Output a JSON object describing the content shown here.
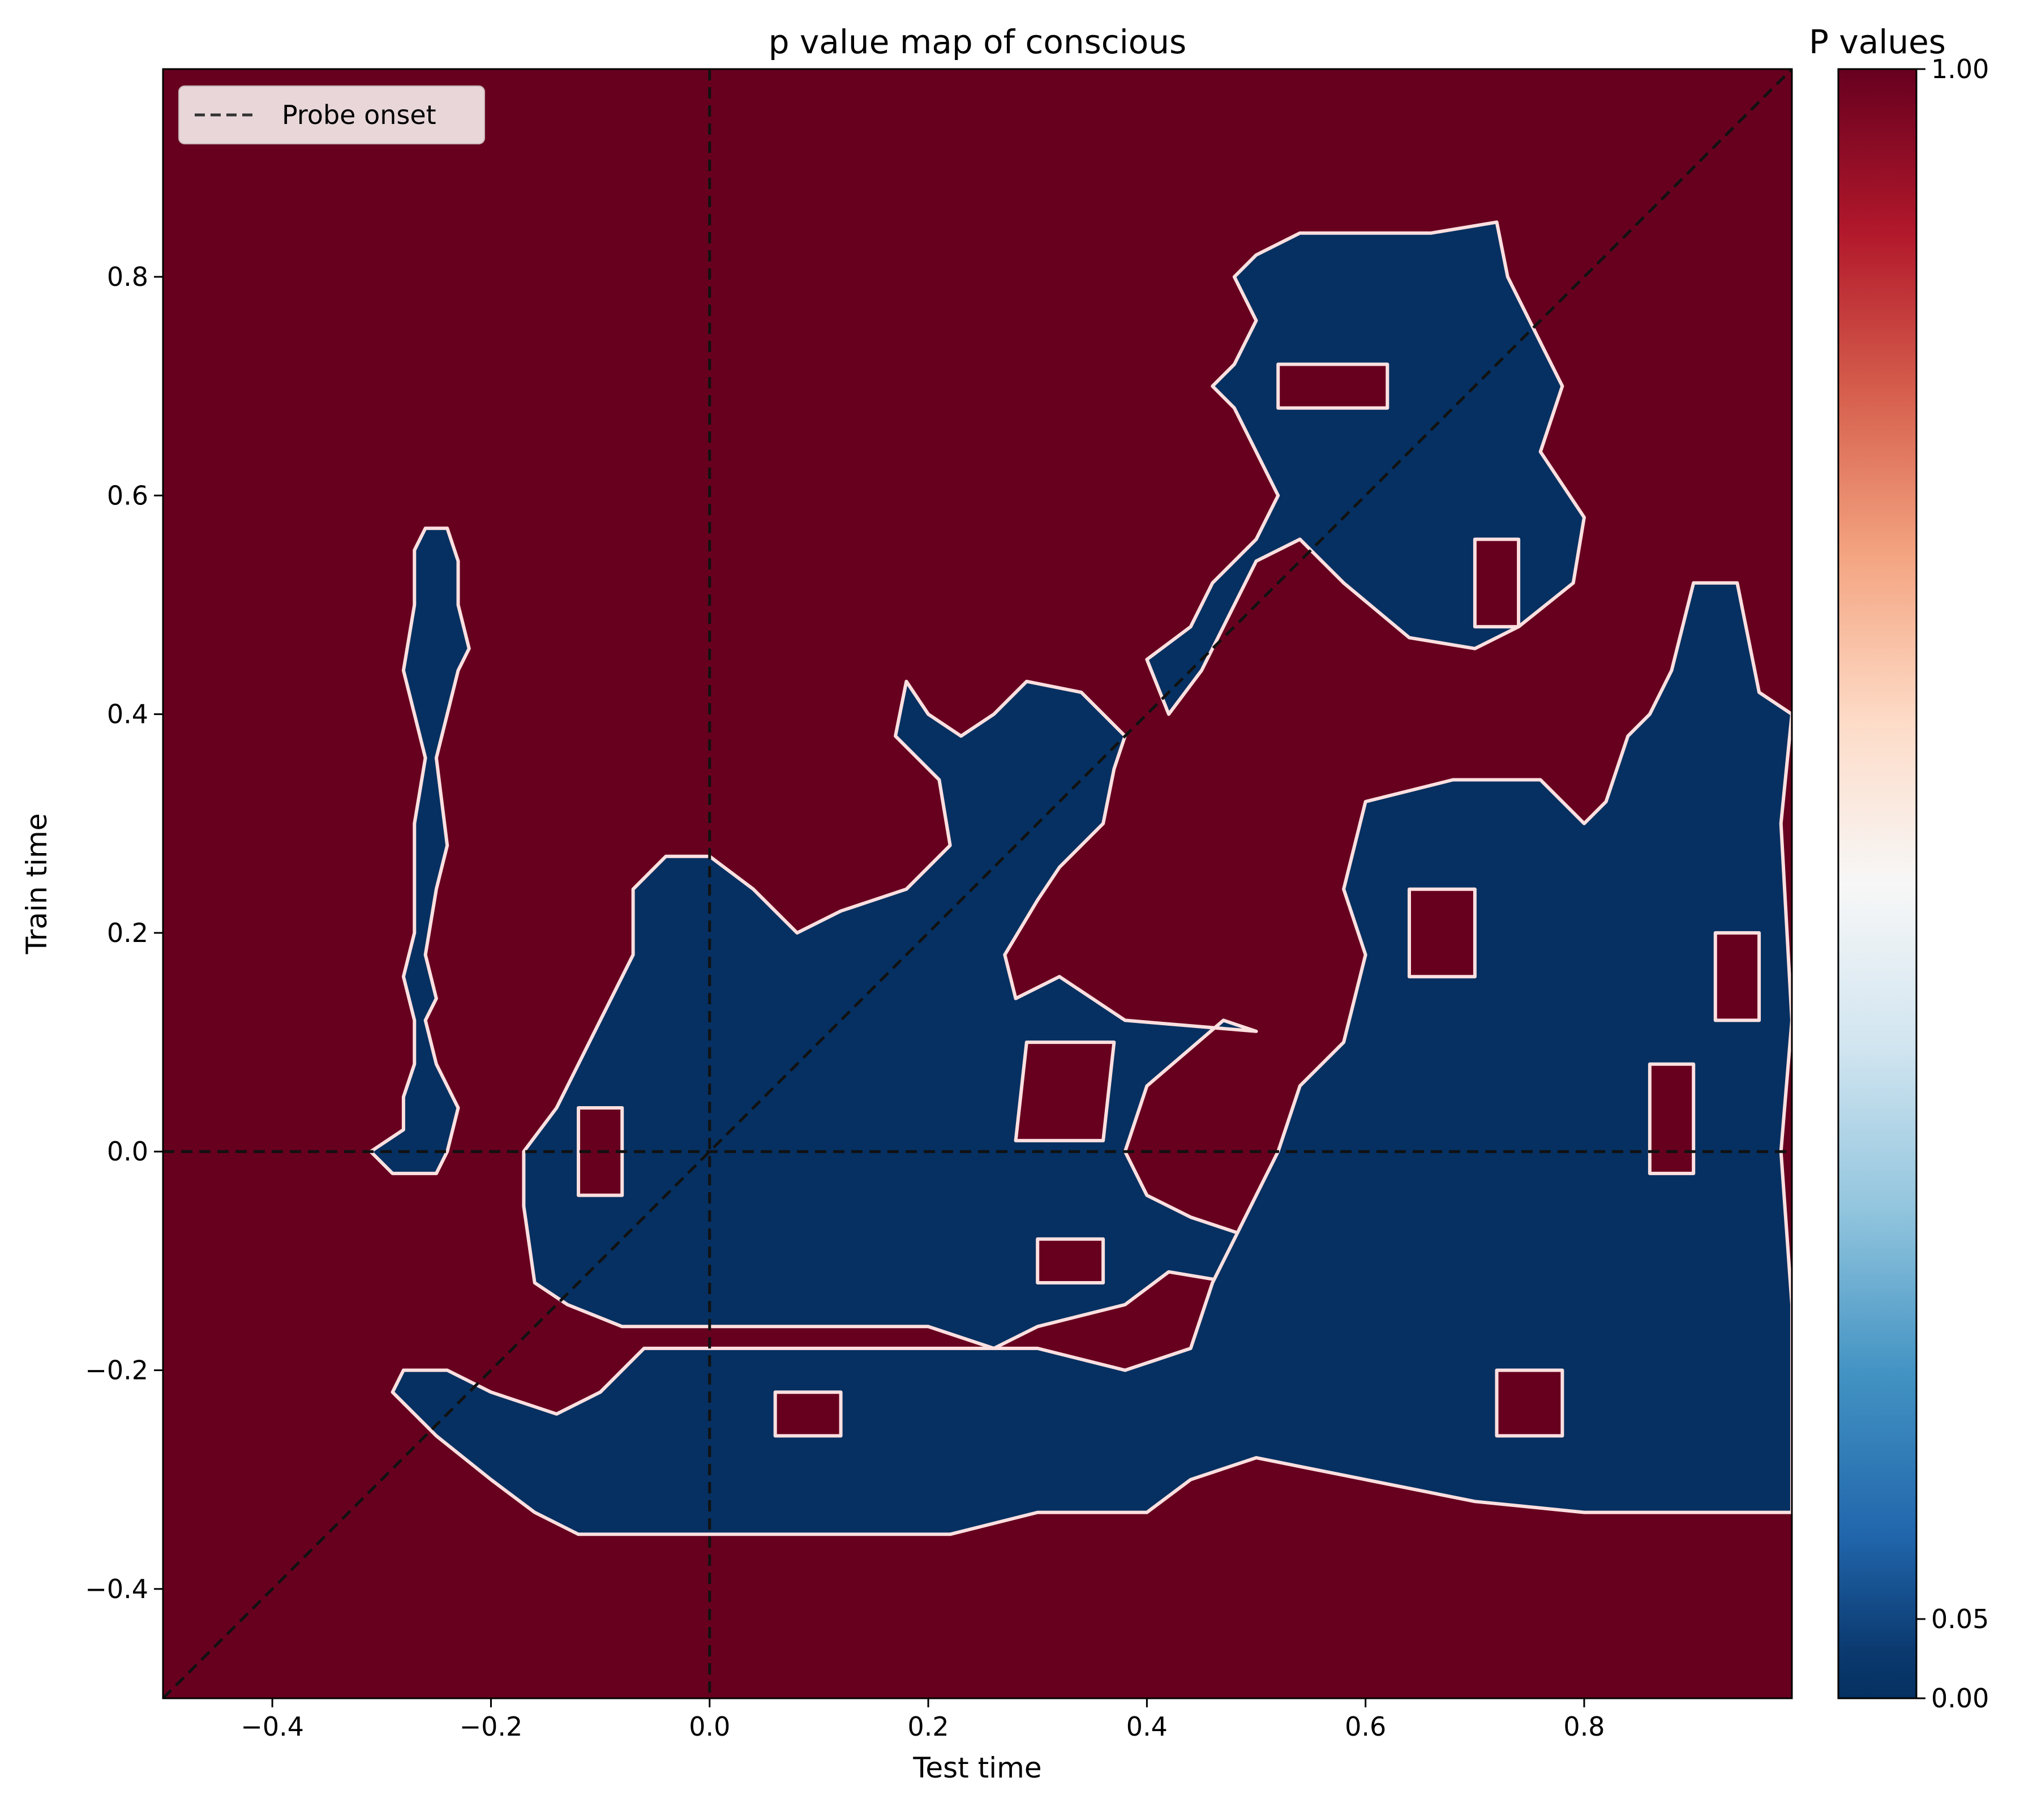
{
  "chart_data": {
    "type": "heatmap",
    "title": "p value map of  conscious",
    "xlabel": "Test time",
    "ylabel": "Train time",
    "xlim": [
      -0.5,
      0.99
    ],
    "ylim": [
      -0.5,
      0.99
    ],
    "x_ticks": [
      -0.4,
      -0.2,
      0.0,
      0.2,
      0.4,
      0.6,
      0.8
    ],
    "x_tick_labels": [
      "−0.4",
      "−0.2",
      "0.0",
      "0.2",
      "0.4",
      "0.6",
      "0.8"
    ],
    "y_ticks": [
      -0.4,
      -0.2,
      0.0,
      0.2,
      0.4,
      0.6,
      0.8
    ],
    "y_tick_labels": [
      "−0.4",
      "−0.2",
      "0.0",
      "0.2",
      "0.4",
      "0.6",
      "0.8"
    ],
    "legend": {
      "entries": [
        "Probe onset"
      ],
      "placement": "upper-left"
    },
    "colorbar": {
      "title": "P values",
      "ticks": [
        0.0,
        0.05,
        1.0
      ],
      "tick_labels": [
        "0.00",
        "0.05",
        "1.00"
      ],
      "colormap": "RdBu_r"
    },
    "colors": {
      "non_significant": "#67001f",
      "significant": "#053061",
      "contour": "#fde0e0",
      "reference_lines": "#111111"
    },
    "reference_lines": [
      {
        "kind": "vertical",
        "x": 0.0
      },
      {
        "kind": "horizontal",
        "y": 0.0
      },
      {
        "kind": "diagonal",
        "from": [
          -0.5,
          -0.5
        ],
        "to": [
          0.99,
          0.99
        ]
      }
    ],
    "significant_regions": [
      {
        "region": "left-strip",
        "points": [
          [
            -0.31,
            0.0
          ],
          [
            -0.29,
            -0.02
          ],
          [
            -0.25,
            -0.02
          ],
          [
            -0.24,
            0.0
          ],
          [
            -0.23,
            0.04
          ],
          [
            -0.24,
            0.06
          ],
          [
            -0.25,
            0.08
          ],
          [
            -0.26,
            0.12
          ],
          [
            -0.25,
            0.14
          ],
          [
            -0.26,
            0.18
          ],
          [
            -0.25,
            0.24
          ],
          [
            -0.24,
            0.28
          ],
          [
            -0.25,
            0.36
          ],
          [
            -0.24,
            0.4
          ],
          [
            -0.23,
            0.44
          ],
          [
            -0.22,
            0.46
          ],
          [
            -0.23,
            0.5
          ],
          [
            -0.23,
            0.54
          ],
          [
            -0.24,
            0.57
          ],
          [
            -0.26,
            0.57
          ],
          [
            -0.27,
            0.55
          ],
          [
            -0.27,
            0.5
          ],
          [
            -0.28,
            0.44
          ],
          [
            -0.27,
            0.4
          ],
          [
            -0.26,
            0.36
          ],
          [
            -0.27,
            0.3
          ],
          [
            -0.27,
            0.25
          ],
          [
            -0.27,
            0.2
          ],
          [
            -0.28,
            0.16
          ],
          [
            -0.27,
            0.12
          ],
          [
            -0.27,
            0.08
          ],
          [
            -0.28,
            0.05
          ],
          [
            -0.28,
            0.02
          ]
        ]
      },
      {
        "region": "central-mass",
        "points": [
          [
            -0.17,
            -0.05
          ],
          [
            -0.16,
            -0.12
          ],
          [
            -0.13,
            -0.14
          ],
          [
            -0.08,
            -0.16
          ],
          [
            0.0,
            -0.16
          ],
          [
            0.1,
            -0.16
          ],
          [
            0.2,
            -0.16
          ],
          [
            0.26,
            -0.18
          ],
          [
            0.3,
            -0.16
          ],
          [
            0.38,
            -0.14
          ],
          [
            0.42,
            -0.11
          ],
          [
            0.48,
            -0.12
          ],
          [
            0.5,
            -0.08
          ],
          [
            0.44,
            -0.06
          ],
          [
            0.4,
            -0.04
          ],
          [
            0.38,
            0.0
          ],
          [
            0.4,
            0.06
          ],
          [
            0.47,
            0.12
          ],
          [
            0.5,
            0.11
          ],
          [
            0.38,
            0.12
          ],
          [
            0.35,
            0.14
          ],
          [
            0.32,
            0.16
          ],
          [
            0.28,
            0.14
          ],
          [
            0.27,
            0.18
          ],
          [
            0.3,
            0.23
          ],
          [
            0.32,
            0.26
          ],
          [
            0.36,
            0.3
          ],
          [
            0.37,
            0.35
          ],
          [
            0.38,
            0.38
          ],
          [
            0.34,
            0.42
          ],
          [
            0.29,
            0.43
          ],
          [
            0.26,
            0.4
          ],
          [
            0.23,
            0.38
          ],
          [
            0.2,
            0.4
          ],
          [
            0.18,
            0.43
          ],
          [
            0.17,
            0.38
          ],
          [
            0.21,
            0.34
          ],
          [
            0.22,
            0.28
          ],
          [
            0.18,
            0.24
          ],
          [
            0.12,
            0.22
          ],
          [
            0.08,
            0.2
          ],
          [
            0.04,
            0.24
          ],
          [
            0.0,
            0.27
          ],
          [
            -0.04,
            0.27
          ],
          [
            -0.07,
            0.24
          ],
          [
            -0.07,
            0.18
          ],
          [
            -0.1,
            0.12
          ],
          [
            -0.12,
            0.08
          ],
          [
            -0.14,
            0.04
          ],
          [
            -0.17,
            0.0
          ]
        ]
      },
      {
        "region": "upper-mass",
        "points": [
          [
            0.4,
            0.45
          ],
          [
            0.44,
            0.48
          ],
          [
            0.46,
            0.52
          ],
          [
            0.5,
            0.56
          ],
          [
            0.52,
            0.6
          ],
          [
            0.5,
            0.64
          ],
          [
            0.48,
            0.68
          ],
          [
            0.46,
            0.7
          ],
          [
            0.48,
            0.72
          ],
          [
            0.5,
            0.76
          ],
          [
            0.48,
            0.8
          ],
          [
            0.5,
            0.82
          ],
          [
            0.54,
            0.84
          ],
          [
            0.6,
            0.84
          ],
          [
            0.66,
            0.84
          ],
          [
            0.72,
            0.85
          ],
          [
            0.73,
            0.8
          ],
          [
            0.76,
            0.74
          ],
          [
            0.78,
            0.7
          ],
          [
            0.76,
            0.64
          ],
          [
            0.8,
            0.58
          ],
          [
            0.79,
            0.52
          ],
          [
            0.74,
            0.48
          ],
          [
            0.7,
            0.46
          ],
          [
            0.64,
            0.47
          ],
          [
            0.58,
            0.52
          ],
          [
            0.54,
            0.56
          ],
          [
            0.5,
            0.54
          ],
          [
            0.45,
            0.44
          ],
          [
            0.42,
            0.4
          ]
        ]
      },
      {
        "region": "lower-band",
        "points": [
          [
            -0.29,
            -0.22
          ],
          [
            -0.25,
            -0.26
          ],
          [
            -0.2,
            -0.3
          ],
          [
            -0.16,
            -0.33
          ],
          [
            -0.12,
            -0.35
          ],
          [
            -0.02,
            -0.35
          ],
          [
            0.06,
            -0.35
          ],
          [
            0.22,
            -0.35
          ],
          [
            0.3,
            -0.33
          ],
          [
            0.4,
            -0.33
          ],
          [
            0.44,
            -0.3
          ],
          [
            0.5,
            -0.28
          ],
          [
            0.6,
            -0.3
          ],
          [
            0.7,
            -0.32
          ],
          [
            0.8,
            -0.33
          ],
          [
            0.9,
            -0.33
          ],
          [
            0.99,
            -0.33
          ],
          [
            0.99,
            -0.14
          ],
          [
            0.98,
            0.0
          ],
          [
            0.99,
            0.12
          ],
          [
            0.98,
            0.3
          ],
          [
            0.99,
            0.4
          ],
          [
            0.96,
            0.42
          ],
          [
            0.94,
            0.52
          ],
          [
            0.9,
            0.52
          ],
          [
            0.88,
            0.44
          ],
          [
            0.86,
            0.4
          ],
          [
            0.84,
            0.38
          ],
          [
            0.82,
            0.32
          ],
          [
            0.8,
            0.3
          ],
          [
            0.76,
            0.34
          ],
          [
            0.68,
            0.34
          ],
          [
            0.6,
            0.32
          ],
          [
            0.58,
            0.24
          ],
          [
            0.6,
            0.18
          ],
          [
            0.58,
            0.1
          ],
          [
            0.54,
            0.06
          ],
          [
            0.52,
            0.0
          ],
          [
            0.5,
            -0.04
          ],
          [
            0.48,
            -0.08
          ],
          [
            0.46,
            -0.12
          ],
          [
            0.44,
            -0.18
          ],
          [
            0.38,
            -0.2
          ],
          [
            0.3,
            -0.18
          ],
          [
            0.2,
            -0.18
          ],
          [
            0.1,
            -0.18
          ],
          [
            0.0,
            -0.18
          ],
          [
            -0.06,
            -0.18
          ],
          [
            -0.1,
            -0.22
          ],
          [
            -0.14,
            -0.24
          ],
          [
            -0.2,
            -0.22
          ],
          [
            -0.24,
            -0.2
          ],
          [
            -0.28,
            -0.2
          ]
        ]
      }
    ],
    "non_significant_holes": [
      {
        "points": [
          [
            0.28,
            0.01
          ],
          [
            0.36,
            0.01
          ],
          [
            0.37,
            0.1
          ],
          [
            0.29,
            0.1
          ]
        ]
      },
      {
        "points": [
          [
            0.7,
            0.56
          ],
          [
            0.74,
            0.56
          ],
          [
            0.74,
            0.48
          ],
          [
            0.7,
            0.48
          ]
        ]
      },
      {
        "points": [
          [
            0.52,
            0.72
          ],
          [
            0.62,
            0.72
          ],
          [
            0.62,
            0.68
          ],
          [
            0.52,
            0.68
          ]
        ]
      },
      {
        "points": [
          [
            -0.12,
            -0.04
          ],
          [
            -0.08,
            -0.04
          ],
          [
            -0.08,
            0.04
          ],
          [
            -0.12,
            0.04
          ]
        ]
      },
      {
        "points": [
          [
            0.64,
            0.24
          ],
          [
            0.7,
            0.24
          ],
          [
            0.7,
            0.16
          ],
          [
            0.64,
            0.16
          ]
        ]
      },
      {
        "points": [
          [
            0.86,
            -0.02
          ],
          [
            0.9,
            -0.02
          ],
          [
            0.9,
            0.08
          ],
          [
            0.86,
            0.08
          ]
        ]
      },
      {
        "points": [
          [
            0.72,
            -0.26
          ],
          [
            0.78,
            -0.26
          ],
          [
            0.78,
            -0.2
          ],
          [
            0.72,
            -0.2
          ]
        ]
      },
      {
        "points": [
          [
            0.92,
            0.2
          ],
          [
            0.96,
            0.2
          ],
          [
            0.96,
            0.12
          ],
          [
            0.92,
            0.12
          ]
        ]
      },
      {
        "points": [
          [
            0.3,
            -0.12
          ],
          [
            0.36,
            -0.12
          ],
          [
            0.36,
            -0.08
          ],
          [
            0.3,
            -0.08
          ]
        ]
      },
      {
        "points": [
          [
            0.06,
            -0.26
          ],
          [
            0.12,
            -0.26
          ],
          [
            0.12,
            -0.22
          ],
          [
            0.06,
            -0.22
          ]
        ]
      }
    ]
  }
}
